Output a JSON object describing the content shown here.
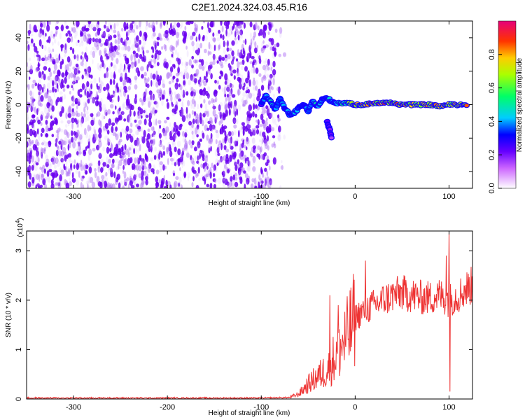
{
  "chart_data": [
    {
      "type": "heatmap",
      "title": "C2E1.2024.324.03.45.R16",
      "xlabel": "Height of straight line (km)",
      "ylabel": "Frequency (Hz)",
      "xlim": [
        -350,
        125
      ],
      "ylim": [
        -50,
        50
      ],
      "x_ticks": [
        "-300",
        "-200",
        "-100",
        "0",
        "100"
      ],
      "y_ticks": [
        "-40",
        "-20",
        "0",
        "20",
        "40"
      ],
      "colorbar": {
        "label": "Normalized spectral amplitude",
        "range": [
          0,
          1
        ],
        "ticks": [
          "0.0",
          "0.2",
          "0.4",
          "0.6",
          "0.8"
        ],
        "colors": [
          "#ffffff",
          "#ff00ff",
          "#0000ff",
          "#00ffff",
          "#00ff00",
          "#ffff00",
          "#ff0000",
          "#cc0066"
        ]
      },
      "noise_region": {
        "x_range": [
          -350,
          -85
        ],
        "y_range": [
          -50,
          50
        ],
        "amplitude_range": [
          0.05,
          0.2
        ],
        "color": "#7f00ff"
      },
      "signal_track": [
        {
          "x": -100,
          "y": 0,
          "amp": 0.3
        },
        {
          "x": -95,
          "y": 5,
          "amp": 0.45
        },
        {
          "x": -90,
          "y": 2,
          "amp": 0.5
        },
        {
          "x": -85,
          "y": -3,
          "amp": 0.45
        },
        {
          "x": -80,
          "y": 4,
          "amp": 0.5
        },
        {
          "x": -75,
          "y": -2,
          "amp": 0.4
        },
        {
          "x": -70,
          "y": -6,
          "amp": 0.5
        },
        {
          "x": -65,
          "y": -5,
          "amp": 0.55
        },
        {
          "x": -60,
          "y": -2,
          "amp": 0.45
        },
        {
          "x": -55,
          "y": 0,
          "amp": 0.4
        },
        {
          "x": -50,
          "y": -4,
          "amp": 0.45
        },
        {
          "x": -45,
          "y": 2,
          "amp": 0.55
        },
        {
          "x": -40,
          "y": -1,
          "amp": 0.5
        },
        {
          "x": -35,
          "y": 3,
          "amp": 0.5
        },
        {
          "x": -30,
          "y": 4,
          "amp": 0.45
        },
        {
          "x": -25,
          "y": 2,
          "amp": 0.5
        },
        {
          "x": -20,
          "y": 1,
          "amp": 0.55
        },
        {
          "x": -10,
          "y": 1,
          "amp": 0.6
        },
        {
          "x": 0,
          "y": 0,
          "amp": 0.8
        },
        {
          "x": 10,
          "y": 0,
          "amp": 0.85
        },
        {
          "x": 20,
          "y": 1,
          "amp": 0.85
        },
        {
          "x": 30,
          "y": 1,
          "amp": 0.9
        },
        {
          "x": 40,
          "y": 1,
          "amp": 0.9
        },
        {
          "x": 50,
          "y": 0,
          "amp": 0.9
        },
        {
          "x": 60,
          "y": 0,
          "amp": 0.85
        },
        {
          "x": 70,
          "y": 0,
          "amp": 0.85
        },
        {
          "x": 80,
          "y": 0,
          "amp": 0.85
        },
        {
          "x": 90,
          "y": -1,
          "amp": 0.85
        },
        {
          "x": 100,
          "y": 0,
          "amp": 0.8
        },
        {
          "x": 110,
          "y": 0,
          "amp": 0.9
        },
        {
          "x": 120,
          "y": 0,
          "amp": 0.9
        }
      ],
      "signal_branch": [
        {
          "x": -30,
          "y": -10,
          "amp": 0.3
        },
        {
          "x": -27,
          "y": -15,
          "amp": 0.25
        },
        {
          "x": -25,
          "y": -20,
          "amp": 0.2
        }
      ]
    },
    {
      "type": "line",
      "xlabel": "Height of straight line (km)",
      "ylabel": "SNR (10 * v/v)",
      "y_multiplier": "(x10",
      "y_multiplier_exp": "4",
      "y_multiplier_close": ")",
      "xlim": [
        -350,
        125
      ],
      "ylim": [
        0,
        3.4
      ],
      "x_ticks": [
        "-300",
        "-200",
        "-100",
        "0",
        "100"
      ],
      "y_ticks": [
        "0",
        "1",
        "2",
        "3"
      ],
      "series": [
        {
          "color": "#ee3333",
          "x": [
            -350,
            -300,
            -250,
            -200,
            -150,
            -100,
            -70,
            -60,
            -50,
            -40,
            -30,
            -20,
            -10,
            0,
            10,
            20,
            30,
            40,
            50,
            60,
            70,
            80,
            90,
            100,
            110,
            120,
            125
          ],
          "y": [
            0.02,
            0.02,
            0.02,
            0.02,
            0.02,
            0.02,
            0.03,
            0.1,
            0.3,
            0.45,
            0.6,
            0.9,
            1.2,
            1.65,
            1.8,
            1.9,
            2.0,
            2.1,
            2.15,
            2.1,
            2.05,
            2.05,
            2.1,
            2.0,
            2.1,
            2.25,
            2.3
          ]
        }
      ],
      "spikes": [
        {
          "x": -27,
          "y": 2.1
        },
        {
          "x": -18,
          "y": 1.9
        },
        {
          "x": 11,
          "y": 2.8
        },
        {
          "x": 97,
          "y": 2.9
        },
        {
          "x": 100,
          "y": 3.4
        },
        {
          "x": 101,
          "y": 0.15
        }
      ]
    }
  ]
}
